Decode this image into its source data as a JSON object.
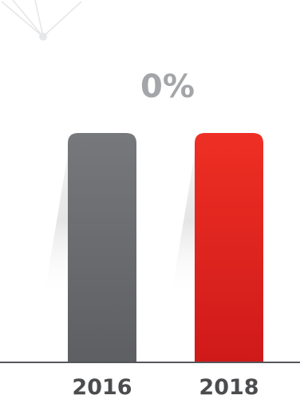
{
  "chart_data": {
    "type": "bar",
    "categories": [
      "2016",
      "2018"
    ],
    "values": [
      100,
      100
    ],
    "annotation": "0%",
    "ylim": [
      0,
      100
    ],
    "grid": false,
    "colors": {
      "2016": "#6a6b6e",
      "2018": "#e3221f",
      "baseline": "#55565a",
      "annotation": "#a3a5a8"
    }
  }
}
